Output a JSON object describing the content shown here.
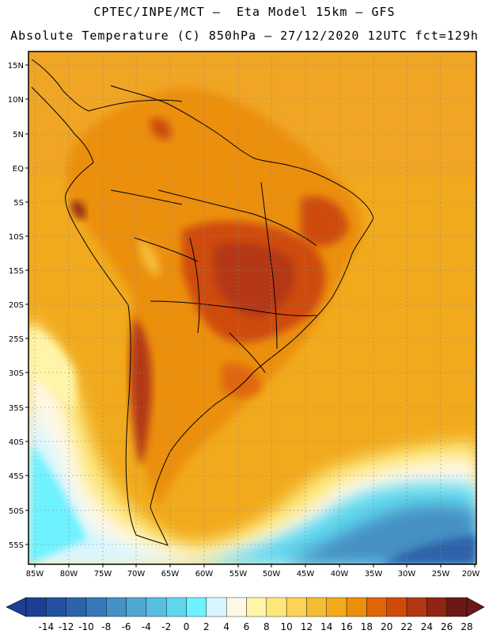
{
  "header": {
    "line1": "CPTEC/INPE/MCT –  Eta Model 15km – GFS",
    "line2": "Absolute Temperature (C) 850hPa – 27/12/2020 12UTC fct=129h"
  },
  "map": {
    "lat_labels": [
      "15N",
      "10N",
      "5N",
      "EQ",
      "5S",
      "10S",
      "15S",
      "20S",
      "25S",
      "30S",
      "35S",
      "40S",
      "45S",
      "50S",
      "55S"
    ],
    "lon_labels": [
      "85W",
      "80W",
      "75W",
      "70W",
      "65W",
      "60W",
      "55W",
      "50W",
      "45W",
      "40W",
      "35W",
      "30W",
      "25W",
      "20W"
    ]
  },
  "colorbar": {
    "labels": [
      "-14",
      "-12",
      "-10",
      "-8",
      "-6",
      "-4",
      "-2",
      "0",
      "2",
      "4",
      "6",
      "8",
      "10",
      "12",
      "14",
      "16",
      "18",
      "20",
      "22",
      "24",
      "26",
      "28"
    ],
    "colors": [
      "#1c3f94",
      "#24519f",
      "#2d63ab",
      "#3878b8",
      "#4590c4",
      "#50a8d2",
      "#58bfe0",
      "#5fd6ec",
      "#6ef2ff",
      "#d7f6ff",
      "#fff8e8",
      "#fff5a8",
      "#fde77a",
      "#fbd357",
      "#f5bc35",
      "#f2a91a",
      "#ec8f0b",
      "#e0660a",
      "#cf4b0c",
      "#b43713",
      "#8f2515",
      "#6e1717"
    ]
  },
  "chart_data": {
    "type": "heatmap",
    "title": "CPTEC/INPE/MCT – Eta Model 15km – GFS",
    "subtitle": "Absolute Temperature (C) 850hPa – 27/12/2020 12UTC fct=129h",
    "variable": "Absolute Temperature",
    "units": "C",
    "level": "850hPa",
    "valid": "27/12/2020 12UTC",
    "forecast_hour": "129h",
    "xlim": [
      -86,
      -20
    ],
    "ylim": [
      -58,
      17
    ],
    "x_ticks": [
      -85,
      -80,
      -75,
      -70,
      -65,
      -60,
      -55,
      -50,
      -45,
      -40,
      -35,
      -30,
      -25,
      -20
    ],
    "y_ticks": [
      15,
      10,
      5,
      0,
      -5,
      -10,
      -15,
      -20,
      -25,
      -30,
      -35,
      -40,
      -45,
      -50,
      -55
    ],
    "colorbar_range": [
      -14,
      28
    ],
    "colorbar_step": 2
  }
}
